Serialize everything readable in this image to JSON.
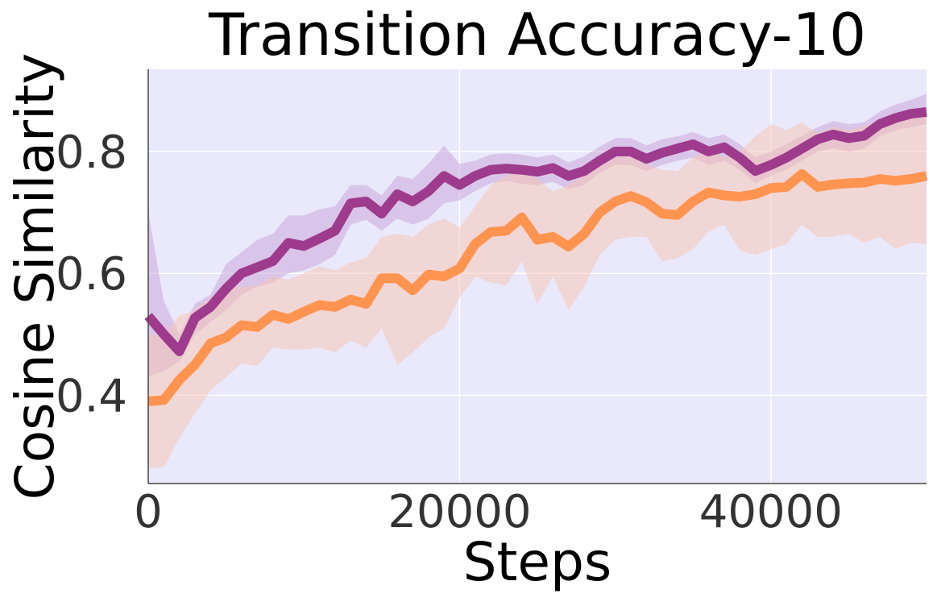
{
  "chart_data": {
    "type": "line",
    "title": "Transition Accuracy-10",
    "xlabel": "Steps",
    "ylabel": "Cosine Similarity",
    "xlim": [
      0,
      50000
    ],
    "ylim": [
      0.255,
      0.935
    ],
    "x_ticks": [
      0,
      20000,
      40000
    ],
    "y_ticks": [
      0.4,
      0.6,
      0.8
    ],
    "x_tick_labels": [
      "0",
      "20000",
      "40000"
    ],
    "y_tick_labels": [
      "0.4",
      "0.6",
      "0.8"
    ],
    "grid": true,
    "background": "#eae8fb",
    "legend": "none",
    "series": [
      {
        "color": "#9e3b8c",
        "band_color": "#c8a2d8",
        "x": [
          0,
          1000,
          2000,
          3000,
          4000,
          5000,
          6000,
          7000,
          8000,
          9000,
          10000,
          11000,
          12000,
          13000,
          14000,
          15000,
          16000,
          17000,
          18000,
          19000,
          20000,
          21000,
          22000,
          23000,
          24000,
          25000,
          26000,
          27000,
          28000,
          29000,
          30000,
          31000,
          32000,
          33000,
          34000,
          35000,
          36000,
          37000,
          38000,
          39000,
          40000,
          41000,
          42000,
          43000,
          44000,
          45000,
          46000,
          47000,
          48000,
          49000,
          50000
        ],
        "values": [
          0.53,
          0.5,
          0.472,
          0.527,
          0.545,
          0.575,
          0.6,
          0.61,
          0.62,
          0.65,
          0.645,
          0.657,
          0.67,
          0.715,
          0.718,
          0.698,
          0.73,
          0.718,
          0.735,
          0.76,
          0.745,
          0.76,
          0.77,
          0.772,
          0.77,
          0.767,
          0.773,
          0.76,
          0.768,
          0.785,
          0.8,
          0.8,
          0.788,
          0.798,
          0.805,
          0.812,
          0.8,
          0.807,
          0.79,
          0.768,
          0.778,
          0.79,
          0.805,
          0.82,
          0.828,
          0.822,
          0.826,
          0.845,
          0.855,
          0.862,
          0.865
        ],
        "lower": [
          0.43,
          0.44,
          0.455,
          0.5,
          0.52,
          0.54,
          0.565,
          0.578,
          0.585,
          0.6,
          0.605,
          0.615,
          0.63,
          0.68,
          0.688,
          0.67,
          0.69,
          0.68,
          0.69,
          0.715,
          0.72,
          0.735,
          0.748,
          0.752,
          0.747,
          0.745,
          0.75,
          0.738,
          0.745,
          0.765,
          0.778,
          0.778,
          0.768,
          0.778,
          0.785,
          0.79,
          0.778,
          0.785,
          0.77,
          0.748,
          0.76,
          0.77,
          0.785,
          0.8,
          0.805,
          0.8,
          0.805,
          0.825,
          0.835,
          0.84,
          0.845
        ],
        "upper": [
          0.7,
          0.555,
          0.5,
          0.55,
          0.565,
          0.615,
          0.635,
          0.655,
          0.665,
          0.695,
          0.695,
          0.705,
          0.71,
          0.745,
          0.745,
          0.728,
          0.76,
          0.755,
          0.78,
          0.81,
          0.78,
          0.785,
          0.795,
          0.797,
          0.795,
          0.79,
          0.795,
          0.782,
          0.792,
          0.808,
          0.822,
          0.822,
          0.81,
          0.82,
          0.825,
          0.832,
          0.822,
          0.828,
          0.812,
          0.79,
          0.8,
          0.812,
          0.826,
          0.84,
          0.85,
          0.845,
          0.848,
          0.866,
          0.877,
          0.885,
          0.895
        ]
      },
      {
        "color": "#ff9450",
        "band_color": "#f7c4b2",
        "x": [
          0,
          1000,
          2000,
          3000,
          4000,
          5000,
          6000,
          7000,
          8000,
          9000,
          10000,
          11000,
          12000,
          13000,
          14000,
          15000,
          16000,
          17000,
          18000,
          19000,
          20000,
          21000,
          22000,
          23000,
          24000,
          25000,
          26000,
          27000,
          28000,
          29000,
          30000,
          31000,
          32000,
          33000,
          34000,
          35000,
          36000,
          37000,
          38000,
          39000,
          40000,
          41000,
          42000,
          43000,
          44000,
          45000,
          46000,
          47000,
          48000,
          49000,
          50000
        ],
        "values": [
          0.39,
          0.392,
          0.425,
          0.45,
          0.485,
          0.495,
          0.515,
          0.512,
          0.532,
          0.525,
          0.537,
          0.548,
          0.545,
          0.557,
          0.55,
          0.592,
          0.592,
          0.572,
          0.598,
          0.595,
          0.608,
          0.648,
          0.668,
          0.67,
          0.692,
          0.655,
          0.66,
          0.644,
          0.665,
          0.7,
          0.718,
          0.727,
          0.717,
          0.698,
          0.696,
          0.718,
          0.733,
          0.728,
          0.726,
          0.73,
          0.74,
          0.742,
          0.763,
          0.742,
          0.746,
          0.748,
          0.749,
          0.755,
          0.752,
          0.755,
          0.76
        ],
        "lower": [
          0.28,
          0.282,
          0.33,
          0.37,
          0.408,
          0.43,
          0.452,
          0.448,
          0.478,
          0.475,
          0.475,
          0.478,
          0.47,
          0.49,
          0.478,
          0.51,
          0.45,
          0.47,
          0.495,
          0.51,
          0.56,
          0.595,
          0.585,
          0.58,
          0.62,
          0.55,
          0.595,
          0.54,
          0.578,
          0.63,
          0.655,
          0.66,
          0.66,
          0.62,
          0.625,
          0.64,
          0.668,
          0.68,
          0.638,
          0.63,
          0.64,
          0.648,
          0.68,
          0.66,
          0.66,
          0.665,
          0.65,
          0.66,
          0.64,
          0.65,
          0.648
        ],
        "upper": [
          0.5,
          0.5,
          0.53,
          0.54,
          0.56,
          0.58,
          0.578,
          0.58,
          0.595,
          0.59,
          0.6,
          0.612,
          0.605,
          0.618,
          0.625,
          0.66,
          0.665,
          0.66,
          0.68,
          0.69,
          0.675,
          0.71,
          0.745,
          0.76,
          0.77,
          0.755,
          0.735,
          0.745,
          0.76,
          0.775,
          0.79,
          0.798,
          0.778,
          0.77,
          0.768,
          0.79,
          0.805,
          0.79,
          0.8,
          0.825,
          0.845,
          0.835,
          0.848,
          0.83,
          0.84,
          0.835,
          0.842,
          0.85,
          0.858,
          0.86,
          0.87
        ]
      }
    ]
  }
}
